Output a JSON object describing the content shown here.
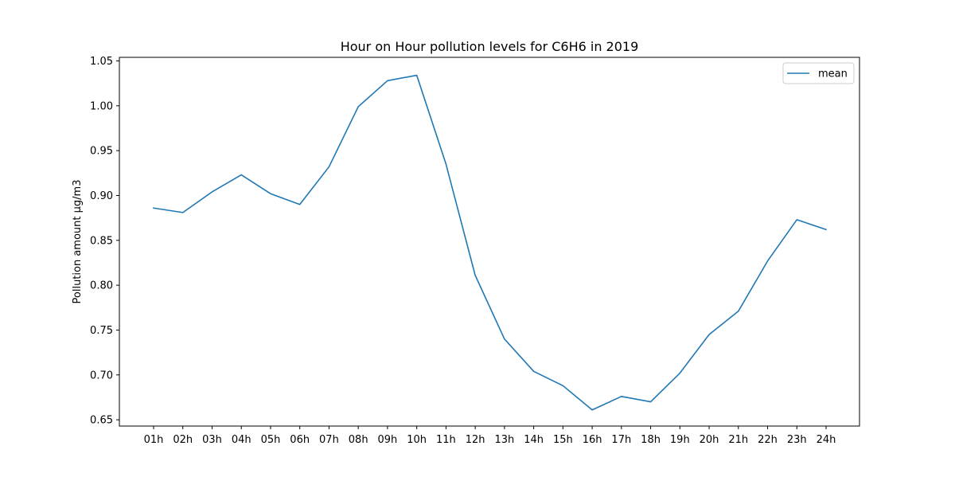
{
  "chart_data": {
    "type": "line",
    "title": "Hour on Hour pollution levels for C6H6 in 2019",
    "xlabel": "",
    "ylabel": "Pollution amount µg/m3",
    "categories": [
      "01h",
      "02h",
      "03h",
      "04h",
      "05h",
      "06h",
      "07h",
      "08h",
      "09h",
      "10h",
      "11h",
      "12h",
      "13h",
      "14h",
      "15h",
      "16h",
      "17h",
      "18h",
      "19h",
      "20h",
      "21h",
      "22h",
      "23h",
      "24h"
    ],
    "series": [
      {
        "name": "mean",
        "color": "#1f77b4",
        "values": [
          0.886,
          0.881,
          0.904,
          0.923,
          0.902,
          0.89,
          0.932,
          0.999,
          1.028,
          1.034,
          0.935,
          0.811,
          0.74,
          0.704,
          0.688,
          0.661,
          0.676,
          0.67,
          0.702,
          0.745,
          0.771,
          0.827,
          0.873,
          0.862
        ]
      }
    ],
    "ylim": [
      0.643,
      1.054
    ],
    "yticks": [
      0.65,
      0.7,
      0.75,
      0.8,
      0.85,
      0.9,
      0.95,
      1.0,
      1.05
    ],
    "ytick_labels": [
      "0.65",
      "0.70",
      "0.75",
      "0.80",
      "0.85",
      "0.90",
      "0.95",
      "1.00",
      "1.05"
    ],
    "grid": false,
    "legend_position": "top-right"
  }
}
